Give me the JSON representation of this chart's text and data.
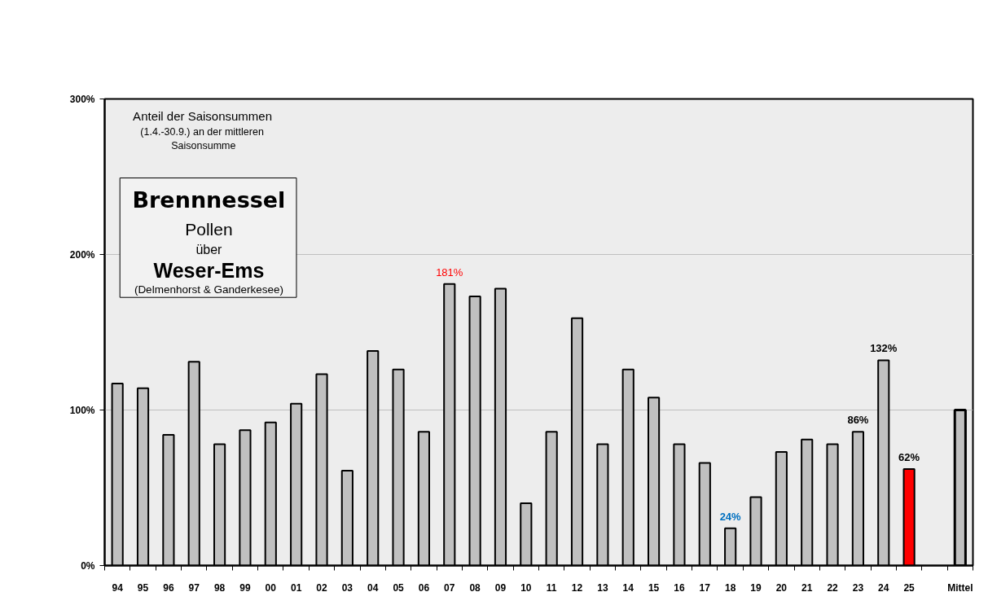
{
  "chart_data": {
    "type": "bar",
    "title": "Brennnessel",
    "subtitle": "Pollen",
    "annotations": [
      "Anteil der Saisonsummen",
      "(1.4.-30.9.)  an der mittleren",
      "Saisonsumme",
      "über",
      "Weser-Ems",
      "(Delmenhorst & Ganderkesee)"
    ],
    "categories": [
      "94",
      "95",
      "96",
      "97",
      "98",
      "99",
      "00",
      "01",
      "02",
      "03",
      "04",
      "05",
      "06",
      "07",
      "08",
      "09",
      "10",
      "11",
      "12",
      "13",
      "14",
      "15",
      "16",
      "17",
      "18",
      "19",
      "20",
      "21",
      "22",
      "23",
      "24",
      "25",
      null,
      "Mittel"
    ],
    "values": [
      117,
      114,
      84,
      131,
      78,
      87,
      92,
      104,
      123,
      61,
      138,
      126,
      86,
      181,
      173,
      178,
      40,
      86,
      159,
      78,
      126,
      108,
      78,
      66,
      24,
      44,
      73,
      81,
      78,
      86,
      132,
      62,
      null,
      100
    ],
    "colors": [
      "#c0c0c0",
      "#c0c0c0",
      "#c0c0c0",
      "#c0c0c0",
      "#c0c0c0",
      "#c0c0c0",
      "#c0c0c0",
      "#c0c0c0",
      "#c0c0c0",
      "#c0c0c0",
      "#c0c0c0",
      "#c0c0c0",
      "#c0c0c0",
      "#c0c0c0",
      "#c0c0c0",
      "#c0c0c0",
      "#c0c0c0",
      "#c0c0c0",
      "#c0c0c0",
      "#c0c0c0",
      "#c0c0c0",
      "#c0c0c0",
      "#c0c0c0",
      "#c0c0c0",
      "#c0c0c0",
      "#c0c0c0",
      "#c0c0c0",
      "#c0c0c0",
      "#c0c0c0",
      "#c0c0c0",
      "#c0c0c0",
      "#ff0000",
      null,
      "#c0c0c0"
    ],
    "value_labels": [
      null,
      null,
      null,
      null,
      null,
      null,
      null,
      null,
      null,
      null,
      null,
      null,
      null,
      "181%",
      null,
      null,
      null,
      null,
      null,
      null,
      null,
      null,
      null,
      null,
      "24%",
      null,
      null,
      null,
      null,
      "86%",
      "132%",
      "62%",
      null,
      null
    ],
    "ylim": [
      0,
      300
    ],
    "yticks": [
      {
        "value": 0,
        "label": "0%"
      },
      {
        "value": 100,
        "label": "100%"
      },
      {
        "value": 200,
        "label": "200%"
      },
      {
        "value": 300,
        "label": "300%"
      }
    ],
    "grid": "y"
  }
}
